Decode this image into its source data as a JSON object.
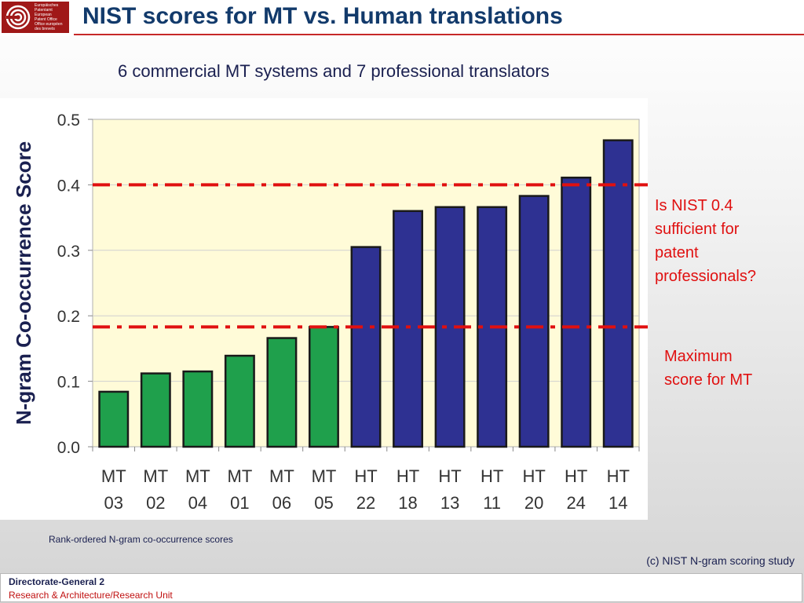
{
  "header": {
    "logo_lines": [
      "Europäisches",
      "Patentamt",
      "European",
      "Patent Office",
      "Office européen",
      "des brevets"
    ],
    "title": "NIST scores for MT vs. Human translations",
    "subtitle": "6 commercial MT systems and 7 professional translators"
  },
  "colors": {
    "brand_red": "#a01818",
    "mt_bar": "#1fa04c",
    "ht_bar": "#2e3192",
    "plot_bg": "#fffbd8",
    "threshold_line": "#e01010"
  },
  "chart_data": {
    "type": "bar",
    "categories": [
      "MT 03",
      "MT 02",
      "MT 04",
      "MT 01",
      "MT 06",
      "MT 05",
      "HT 22",
      "HT 18",
      "HT 13",
      "HT 11",
      "HT 20",
      "HT 24",
      "HT 14"
    ],
    "tick_lines": [
      [
        "MT",
        "03"
      ],
      [
        "MT",
        "02"
      ],
      [
        "MT",
        "04"
      ],
      [
        "MT",
        "01"
      ],
      [
        "MT",
        "06"
      ],
      [
        "MT",
        "05"
      ],
      [
        "HT",
        "22"
      ],
      [
        "HT",
        "18"
      ],
      [
        "HT",
        "13"
      ],
      [
        "HT",
        "11"
      ],
      [
        "HT",
        "20"
      ],
      [
        "HT",
        "24"
      ],
      [
        "HT",
        "14"
      ]
    ],
    "values": [
      0.084,
      0.112,
      0.115,
      0.139,
      0.166,
      0.183,
      0.305,
      0.36,
      0.366,
      0.366,
      0.383,
      0.411,
      0.468
    ],
    "groups": [
      "MT",
      "MT",
      "MT",
      "MT",
      "MT",
      "MT",
      "HT",
      "HT",
      "HT",
      "HT",
      "HT",
      "HT",
      "HT"
    ],
    "ylabel": "N-gram Co-occurrence Score",
    "ylim": [
      0,
      0.5
    ],
    "yticks": [
      "0.0",
      "0.1",
      "0.2",
      "0.3",
      "0.4",
      "0.5"
    ],
    "grid": true,
    "reference_lines": [
      0.4,
      0.183
    ],
    "annotations": [
      {
        "lines": [
          "Is NIST 0.4",
          "sufficient for",
          "patent",
          "professionals?"
        ]
      },
      {
        "lines": [
          "Maximum",
          "score for MT"
        ]
      }
    ]
  },
  "caption": "Rank-ordered N-gram co-occurrence scores",
  "credit": "(c) NIST N-gram scoring study",
  "footer": {
    "line1": "Directorate-General 2",
    "line2": "Research & Architecture/Research Unit"
  }
}
